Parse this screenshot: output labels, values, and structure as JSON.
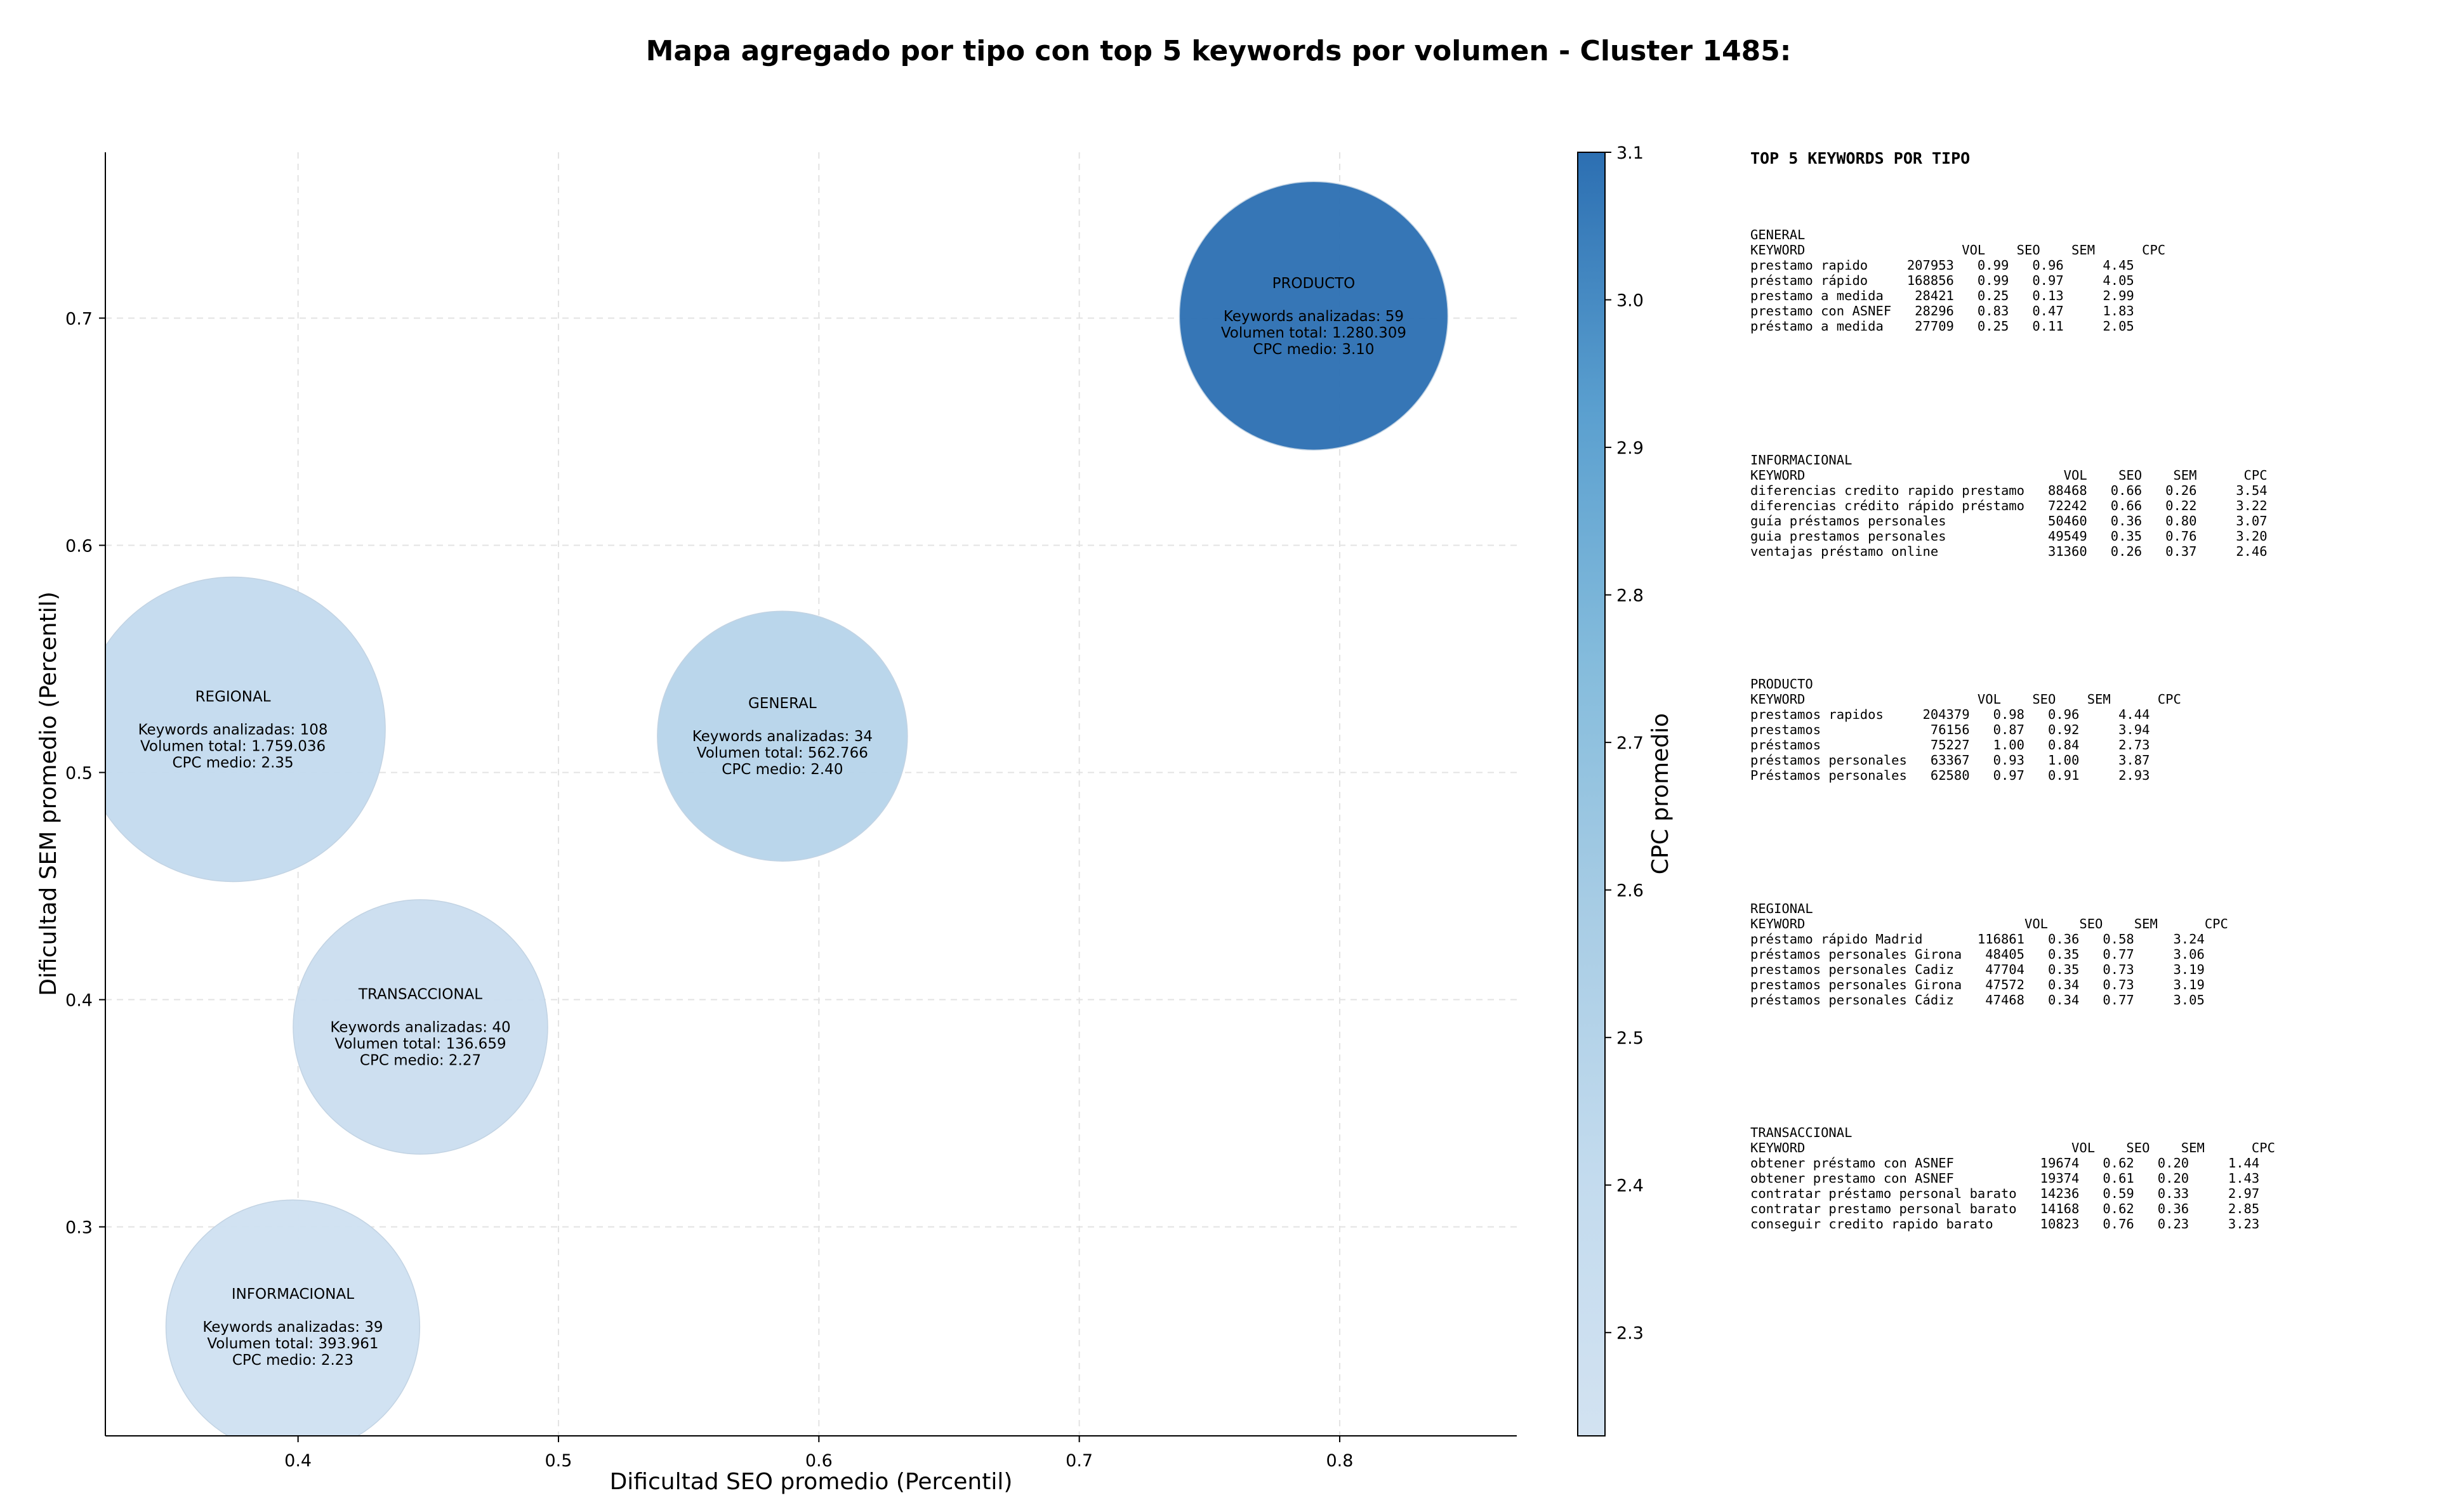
{
  "chart_data": {
    "type": "scatter",
    "title": "Mapa agregado por tipo con top 5 keywords por volumen - Cluster 1485:",
    "xlabel": "Dificultad SEO promedio (Percentil)",
    "ylabel": "Dificultad SEM promedio (Percentil)",
    "xlim": [
      0.326,
      0.868
    ],
    "ylim": [
      0.208,
      0.773
    ],
    "xticks": [
      "0.4",
      "0.5",
      "0.6",
      "0.7",
      "0.8"
    ],
    "yticks": [
      "0.3",
      "0.4",
      "0.5",
      "0.6",
      "0.7"
    ],
    "grid": true,
    "colorbar": {
      "label": "CPC promedio",
      "range": [
        2.23,
        3.1
      ],
      "ticks": [
        "2.3",
        "2.4",
        "2.5",
        "2.6",
        "2.7",
        "2.8",
        "2.9",
        "3.0",
        "3.1"
      ],
      "colormap": "Blues",
      "colors": [
        "#d2e2f1",
        "#b7d4ea",
        "#2f72b4"
      ]
    },
    "label_keywords": "Keywords analizadas: ",
    "label_volume": "Volumen total: ",
    "label_cpc": "CPC medio: ",
    "points": [
      {
        "name": "PRODUCTO",
        "x": 0.79,
        "y": 0.701,
        "keywords": 59,
        "volume": "1.280.309",
        "volume_value": 1280309,
        "cpc": "3.10",
        "color": "#2f72b4"
      },
      {
        "name": "REGIONAL",
        "x": 0.375,
        "y": 0.519,
        "keywords": 108,
        "volume": "1.759.036",
        "volume_value": 1759036,
        "cpc": "2.35",
        "color": "#c4dbee"
      },
      {
        "name": "GENERAL",
        "x": 0.586,
        "y": 0.516,
        "keywords": 34,
        "volume": "562.766",
        "volume_value": 562766,
        "cpc": "2.40",
        "color": "#b8d5ea"
      },
      {
        "name": "TRANSACCIONAL",
        "x": 0.447,
        "y": 0.388,
        "keywords": 40,
        "volume": "136.659",
        "volume_value": 136659,
        "cpc": "2.27",
        "color": "#cbdef0"
      },
      {
        "name": "INFORMACIONAL",
        "x": 0.398,
        "y": 0.256,
        "keywords": 39,
        "volume": "393.961",
        "volume_value": 393961,
        "cpc": "2.23",
        "color": "#d0e1f2"
      }
    ]
  },
  "panel": {
    "title": "TOP 5 KEYWORDS POR TIPO",
    "blocks": [
      {
        "lines": [
          "GENERAL",
          "KEYWORD                    VOL    SEO    SEM      CPC",
          "prestamo rapido     207953   0.99   0.96     4.45",
          "préstamo rápido     168856   0.99   0.97     4.05",
          "prestamo a medida    28421   0.25   0.13     2.99",
          "prestamo con ASNEF   28296   0.83   0.47     1.83",
          "préstamo a medida    27709   0.25   0.11     2.05"
        ]
      },
      {
        "lines": [
          "INFORMACIONAL",
          "KEYWORD                                 VOL    SEO    SEM      CPC",
          "diferencias credito rapido prestamo   88468   0.66   0.26     3.54",
          "diferencias crédito rápido préstamo   72242   0.66   0.22     3.22",
          "guía préstamos personales             50460   0.36   0.80     3.07",
          "guia prestamos personales             49549   0.35   0.76     3.20",
          "ventajas préstamo online              31360   0.26   0.37     2.46"
        ]
      },
      {
        "lines": [
          "PRODUCTO",
          "KEYWORD                      VOL    SEO    SEM      CPC",
          "prestamos rapidos     204379   0.98   0.96     4.44",
          "prestamos              76156   0.87   0.92     3.94",
          "préstamos              75227   1.00   0.84     2.73",
          "préstamos personales   63367   0.93   1.00     3.87",
          "Préstamos personales   62580   0.97   0.91     2.93"
        ]
      },
      {
        "lines": [
          "REGIONAL",
          "KEYWORD                            VOL    SEO    SEM      CPC",
          "préstamo rápido Madrid       116861   0.36   0.58     3.24",
          "préstamos personales Girona   48405   0.35   0.77     3.06",
          "prestamos personales Cadiz    47704   0.35   0.73     3.19",
          "prestamos personales Girona   47572   0.34   0.73     3.19",
          "préstamos personales Cádiz    47468   0.34   0.77     3.05"
        ]
      },
      {
        "lines": [
          "TRANSACCIONAL",
          "KEYWORD                                  VOL    SEO    SEM      CPC",
          "obtener préstamo con ASNEF           19674   0.62   0.20     1.44",
          "obtener prestamo con ASNEF           19374   0.61   0.20     1.43",
          "contratar préstamo personal barato   14236   0.59   0.33     2.97",
          "contratar prestamo personal barato   14168   0.62   0.36     2.85",
          "conseguir credito rapido barato      10823   0.76   0.23     3.23"
        ]
      }
    ]
  }
}
